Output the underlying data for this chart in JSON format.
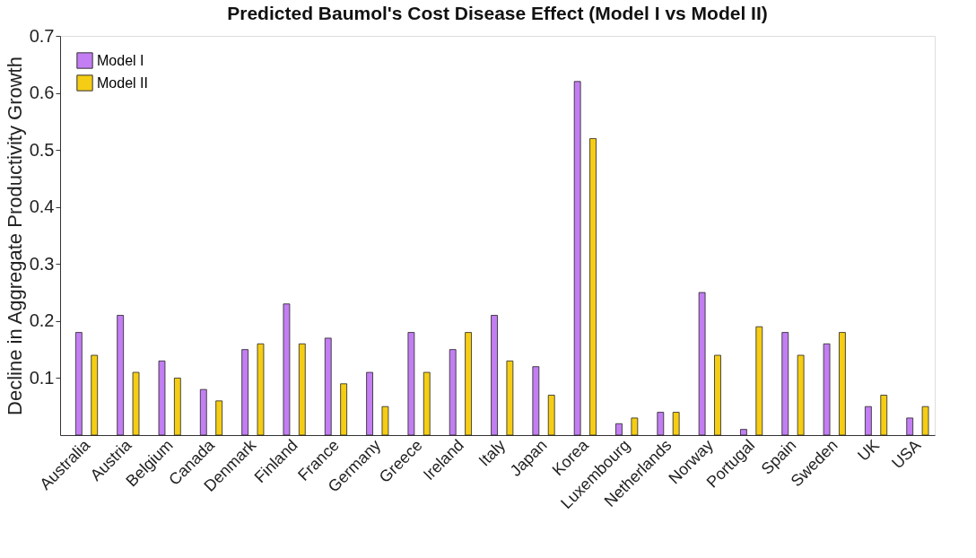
{
  "chart_data": {
    "type": "bar",
    "title": "Predicted Baumol's Cost Disease Effect (Model I vs Model II)",
    "ylabel": "Decline in Aggregate Productivity Growth",
    "categories": [
      "Australia",
      "Austria",
      "Belgium",
      "Canada",
      "Denmark",
      "Finland",
      "France",
      "Germany",
      "Greece",
      "Ireland",
      "Italy",
      "Japan",
      "Korea",
      "Luxembourg",
      "Netherlands",
      "Norway",
      "Portugal",
      "Spain",
      "Sweden",
      "UK",
      "USA"
    ],
    "series": [
      {
        "name": "Model I",
        "color": "#c27ef2",
        "values": [
          0.18,
          0.21,
          0.13,
          0.08,
          0.15,
          0.23,
          0.17,
          0.11,
          0.18,
          0.15,
          0.21,
          0.12,
          0.62,
          0.02,
          0.04,
          0.25,
          0.01,
          0.18,
          0.16,
          0.05,
          0.03
        ]
      },
      {
        "name": "Model II",
        "color": "#f5cd14",
        "values": [
          0.14,
          0.11,
          0.1,
          0.06,
          0.16,
          0.16,
          0.09,
          0.05,
          0.11,
          0.18,
          0.13,
          0.07,
          0.52,
          0.03,
          0.04,
          0.14,
          0.19,
          0.14,
          0.18,
          0.07,
          0.05
        ]
      }
    ],
    "ylim": [
      0,
      0.7
    ],
    "yticks": [
      0.1,
      0.2,
      0.3,
      0.4,
      0.5,
      0.6,
      0.7
    ],
    "grid": false,
    "legend": "top left"
  }
}
